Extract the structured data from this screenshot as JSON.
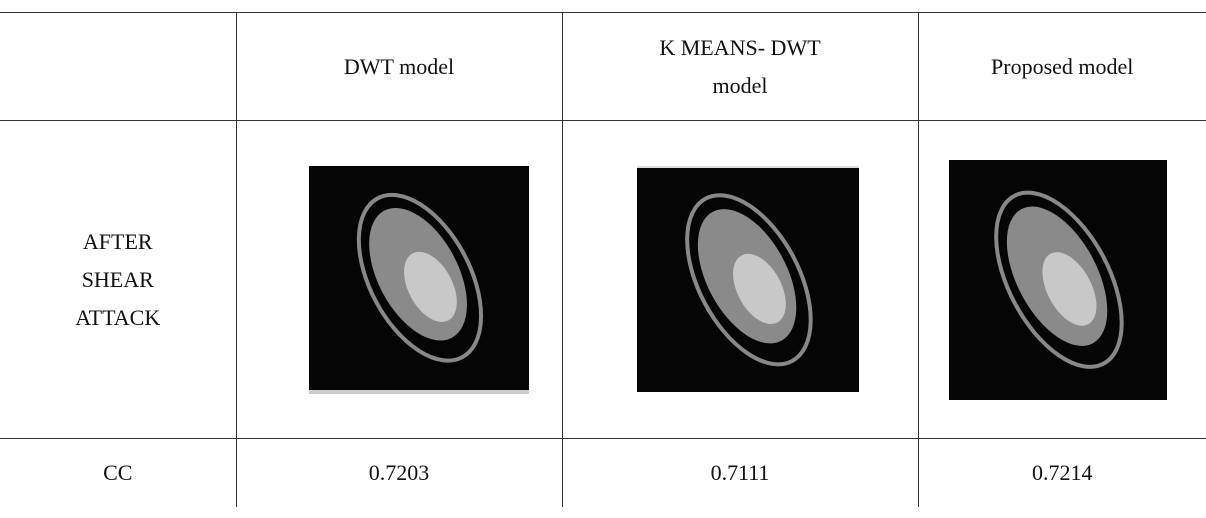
{
  "table": {
    "header": [
      "DWT model",
      "K MEANS- DWT model",
      "Proposed model"
    ],
    "rows": [
      {
        "label": "AFTER SHEAR ATTACK"
      },
      {
        "label": "CC",
        "values": [
          "0.7203",
          "0.7111",
          "0.7214"
        ]
      }
    ]
  }
}
